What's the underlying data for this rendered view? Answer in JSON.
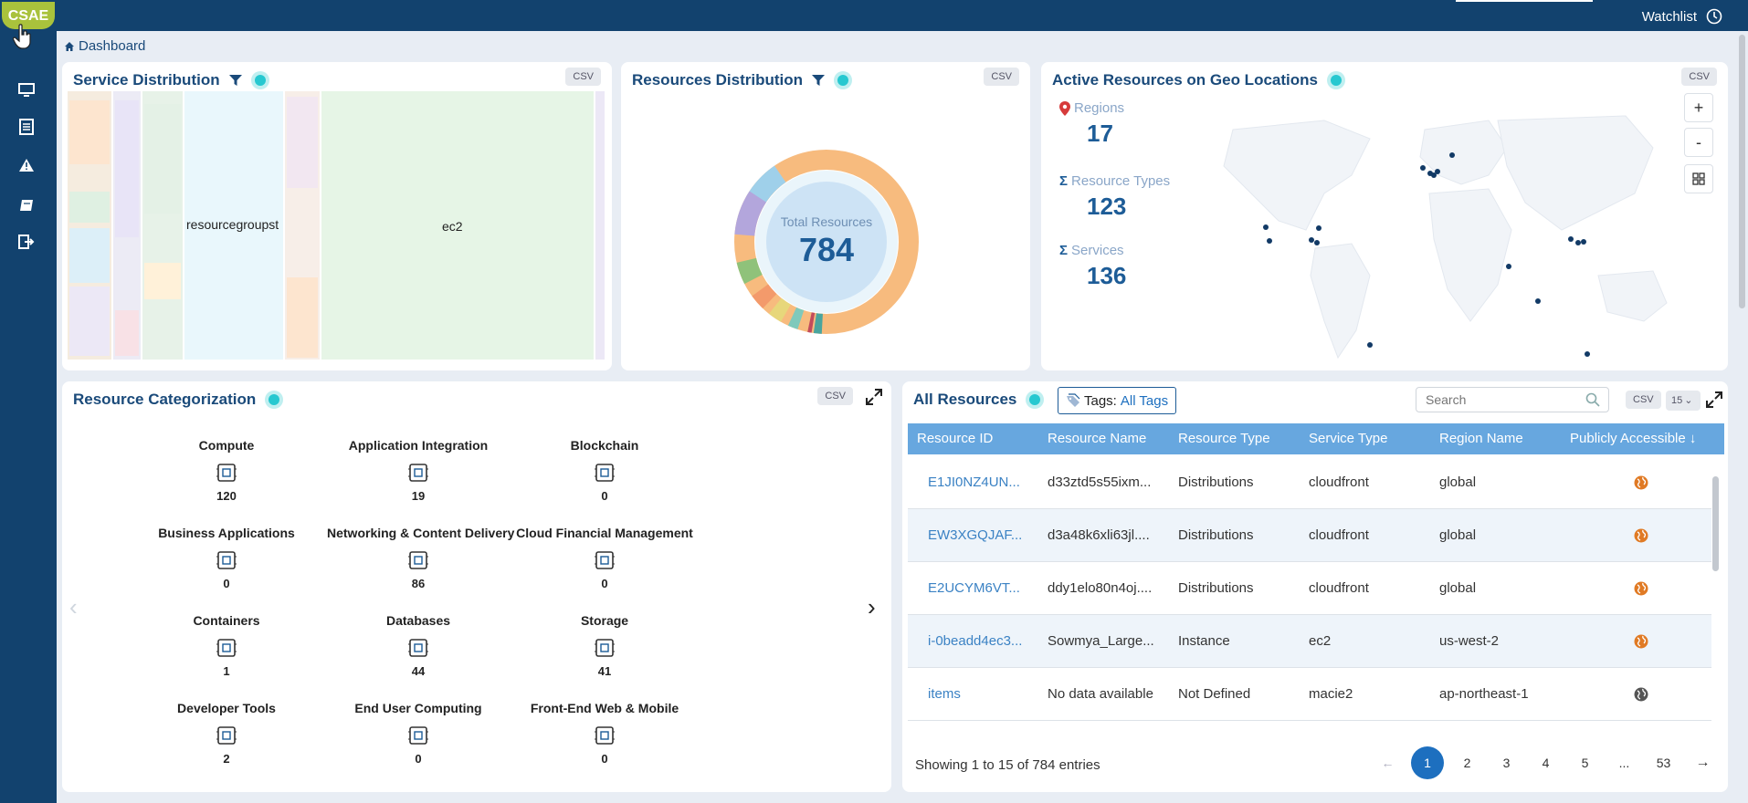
{
  "app": {
    "logo": "CSAE",
    "watchlist_label": "Watchlist",
    "breadcrumb": "Dashboard"
  },
  "colors": {
    "sidebar": "#12426e",
    "accent": "#1d5c97",
    "table_header": "#67a7df",
    "public_globe": "#e07a24"
  },
  "sidebar": {
    "items": [
      {
        "name": "monitor-icon"
      },
      {
        "name": "list-icon"
      },
      {
        "name": "warning-icon"
      },
      {
        "name": "book-icon"
      },
      {
        "name": "logout-icon"
      }
    ]
  },
  "service_distribution": {
    "title": "Service Distribution",
    "csv_label": "CSV",
    "labels": {
      "resourcegroups": "resourcegroupst",
      "ec2": "ec2"
    }
  },
  "resources_distribution": {
    "title": "Resources Distribution",
    "csv_label": "CSV",
    "total_label": "Total Resources",
    "total_value": "784"
  },
  "geo": {
    "title": "Active Resources on Geo Locations",
    "csv_label": "CSV",
    "stats": [
      {
        "label": "Regions",
        "value": "17"
      },
      {
        "label": "Resource Types",
        "value": "123"
      },
      {
        "label": "Services",
        "value": "136"
      }
    ],
    "zoom_in": "+",
    "zoom_out": "-"
  },
  "categorization": {
    "title": "Resource Categorization",
    "csv_label": "CSV",
    "items": [
      {
        "name": "Compute",
        "count": "120"
      },
      {
        "name": "Application Integration",
        "count": "19"
      },
      {
        "name": "Blockchain",
        "count": "0"
      },
      {
        "name": "Business Applications",
        "count": "0"
      },
      {
        "name": "Networking & Content Delivery",
        "count": "86"
      },
      {
        "name": "Cloud Financial Management",
        "count": "0"
      },
      {
        "name": "Containers",
        "count": "1"
      },
      {
        "name": "Databases",
        "count": "44"
      },
      {
        "name": "Storage",
        "count": "41"
      },
      {
        "name": "Developer Tools",
        "count": "2"
      },
      {
        "name": "End User Computing",
        "count": "0"
      },
      {
        "name": "Front-End Web & Mobile",
        "count": "0"
      }
    ]
  },
  "all_resources": {
    "title": "All Resources",
    "tags_label": "Tags:",
    "tags_value": "All Tags",
    "search_placeholder": "Search",
    "csv_label": "CSV",
    "page_size": "15",
    "columns": [
      "Resource ID",
      "Resource Name",
      "Resource Type",
      "Service Type",
      "Region Name",
      "Publicly Accessible"
    ],
    "rows": [
      {
        "id": "E1JI0NZ4UN...",
        "name": "d33ztd5s55ixm...",
        "type": "Distributions",
        "service": "cloudfront",
        "region": "global",
        "public": true
      },
      {
        "id": "EW3XGQJAF...",
        "name": "d3a48k6xli63jl....",
        "type": "Distributions",
        "service": "cloudfront",
        "region": "global",
        "public": true
      },
      {
        "id": "E2UCYM6VT...",
        "name": "ddy1elo80n4oj....",
        "type": "Distributions",
        "service": "cloudfront",
        "region": "global",
        "public": true
      },
      {
        "id": "i-0beadd4ec3...",
        "name": "Sowmya_Large...",
        "type": "Instance",
        "service": "ec2",
        "region": "us-west-2",
        "public": true
      },
      {
        "id": "items",
        "name": "No data available",
        "type": "Not Defined",
        "service": "macie2",
        "region": "ap-northeast-1",
        "public": false
      }
    ],
    "footer": "Showing 1 to 15 of 784 entries",
    "pages": [
      "1",
      "2",
      "3",
      "4",
      "5",
      "...",
      "53"
    ]
  }
}
